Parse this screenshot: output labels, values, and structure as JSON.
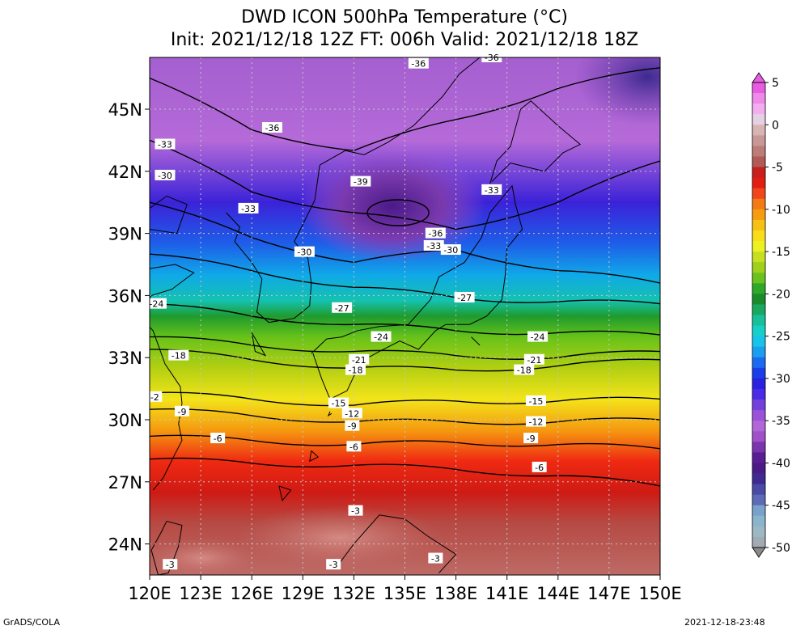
{
  "title_line1": "DWD ICON 500hPa Temperature (°C)",
  "title_line2": "Init: 2021/12/18 12Z  FT: 006h  Valid: 2021/12/18 18Z",
  "footer_left": "GrADS/COLA",
  "footer_right": "2021-12-18-23:48",
  "map": {
    "lon_range": [
      120,
      150
    ],
    "lat_range": [
      22.5,
      47.5
    ],
    "lon_ticks": [
      120,
      123,
      126,
      129,
      132,
      135,
      138,
      141,
      144,
      147,
      150
    ],
    "lon_tick_labels": [
      "120E",
      "123E",
      "126E",
      "129E",
      "132E",
      "135E",
      "138E",
      "141E",
      "144E",
      "147E",
      "150E"
    ],
    "lat_ticks": [
      24,
      27,
      30,
      33,
      36,
      39,
      42,
      45
    ],
    "lat_tick_labels": [
      "24N",
      "27N",
      "30N",
      "33N",
      "36N",
      "39N",
      "42N",
      "45N"
    ],
    "grid": "dotted"
  },
  "colorbar": {
    "min": -50,
    "max": 5,
    "labels": [
      5,
      0,
      -5,
      -10,
      -15,
      -20,
      -25,
      -30,
      -35,
      -40,
      -45,
      -50
    ],
    "label_text": [
      "5",
      "0",
      "-5",
      "-10",
      "-15",
      "-20",
      "-25",
      "-30",
      "-35",
      "-40",
      "-45",
      "-50"
    ]
  },
  "contour_labels": [
    {
      "text": "-36",
      "lon": 135.8,
      "lat": 47.2
    },
    {
      "text": "-36",
      "lon": 140.1,
      "lat": 47.5
    },
    {
      "text": "-36",
      "lon": 127.2,
      "lat": 44.1
    },
    {
      "text": "-33",
      "lon": 120.9,
      "lat": 43.3
    },
    {
      "text": "-30",
      "lon": 120.9,
      "lat": 41.8
    },
    {
      "text": "-39",
      "lon": 132.4,
      "lat": 41.5
    },
    {
      "text": "-33",
      "lon": 140.1,
      "lat": 41.1
    },
    {
      "text": "-33",
      "lon": 125.8,
      "lat": 40.2
    },
    {
      "text": "-36",
      "lon": 136.8,
      "lat": 39.0
    },
    {
      "text": "-33",
      "lon": 136.7,
      "lat": 38.4
    },
    {
      "text": "-30",
      "lon": 137.7,
      "lat": 38.2
    },
    {
      "text": "-30",
      "lon": 129.1,
      "lat": 38.1
    },
    {
      "text": "-27",
      "lon": 138.5,
      "lat": 35.9
    },
    {
      "text": "-24",
      "lon": 120.4,
      "lat": 35.6
    },
    {
      "text": "-27",
      "lon": 131.3,
      "lat": 35.4
    },
    {
      "text": "-24",
      "lon": 133.6,
      "lat": 34.0
    },
    {
      "text": "-24",
      "lon": 142.8,
      "lat": 34.0
    },
    {
      "text": "-18",
      "lon": 121.7,
      "lat": 33.1
    },
    {
      "text": "-21",
      "lon": 132.3,
      "lat": 32.9
    },
    {
      "text": "-21",
      "lon": 142.6,
      "lat": 32.9
    },
    {
      "text": "-18",
      "lon": 132.1,
      "lat": 32.4
    },
    {
      "text": "-18",
      "lon": 142.0,
      "lat": 32.4
    },
    {
      "text": "-15",
      "lon": 142.7,
      "lat": 30.9
    },
    {
      "text": "-2",
      "lon": 120.3,
      "lat": 31.1
    },
    {
      "text": "-15",
      "lon": 131.1,
      "lat": 30.8
    },
    {
      "text": "-9",
      "lon": 121.9,
      "lat": 30.4
    },
    {
      "text": "-12",
      "lon": 131.9,
      "lat": 30.3
    },
    {
      "text": "-12",
      "lon": 142.7,
      "lat": 29.9
    },
    {
      "text": "-9",
      "lon": 131.9,
      "lat": 29.7
    },
    {
      "text": "-6",
      "lon": 124.0,
      "lat": 29.1
    },
    {
      "text": "-9",
      "lon": 142.4,
      "lat": 29.1
    },
    {
      "text": "-6",
      "lon": 132.0,
      "lat": 28.7
    },
    {
      "text": "-6",
      "lon": 142.9,
      "lat": 27.7
    },
    {
      "text": "-3",
      "lon": 132.1,
      "lat": 25.6
    },
    {
      "text": "-3",
      "lon": 121.2,
      "lat": 23.0
    },
    {
      "text": "-3",
      "lon": 130.8,
      "lat": 23.0
    },
    {
      "text": "-3",
      "lon": 136.8,
      "lat": 23.3
    }
  ]
}
